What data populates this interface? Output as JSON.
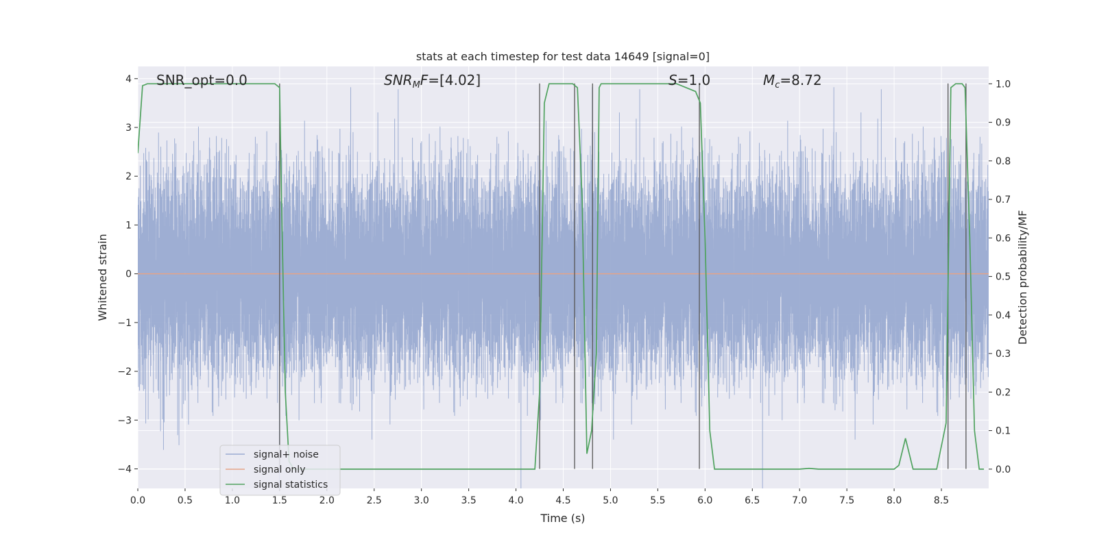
{
  "chart_data": {
    "type": "line",
    "title": "stats at each timestep for test data 14649 [signal=0]",
    "xlabel": "Time (s)",
    "ylabel": "Whitened strain",
    "y2label": "Detection probability/MF",
    "xlim": [
      0.0,
      9.0
    ],
    "ylim": [
      -4.4,
      4.25
    ],
    "y2lim": [
      -0.05,
      1.045
    ],
    "xticks": [
      0.0,
      0.5,
      1.0,
      1.5,
      2.0,
      2.5,
      3.0,
      3.5,
      4.0,
      4.5,
      5.0,
      5.5,
      6.0,
      6.5,
      7.0,
      7.5,
      8.0,
      8.5
    ],
    "xtick_labels": [
      "0.0",
      "0.5",
      "1.0",
      "1.5",
      "2.0",
      "2.5",
      "3.0",
      "3.5",
      "4.0",
      "4.5",
      "5.0",
      "5.5",
      "6.0",
      "6.5",
      "7.0",
      "7.5",
      "8.0",
      "8.5"
    ],
    "yticks": [
      -4,
      -3,
      -2,
      -1,
      0,
      1,
      2,
      3,
      4
    ],
    "ytick_labels": [
      "−4",
      "−3",
      "−2",
      "−1",
      "0",
      "1",
      "2",
      "3",
      "4"
    ],
    "y2ticks": [
      0.0,
      0.1,
      0.2,
      0.3,
      0.4,
      0.5,
      0.6,
      0.7,
      0.8,
      0.9,
      1.0
    ],
    "y2tick_labels": [
      "0.0",
      "0.1",
      "0.2",
      "0.3",
      "0.4",
      "0.5",
      "0.6",
      "0.7",
      "0.8",
      "0.9",
      "1.0"
    ],
    "grid": true,
    "legend_position": "lower-left",
    "colors": {
      "background": "#eaeaf2",
      "grid": "#ffffff",
      "noise": "#9aabd1",
      "signal": "#e5a488",
      "statistic": "#4fa25e",
      "marker": "#555555"
    },
    "annotations": {
      "snr_opt": "SNR_opt=0.0",
      "snr_mf_italic": "SNR",
      "snr_mf_sub": "M",
      "snr_mf_italic2": "F",
      "snr_mf_value": "=[4.02]",
      "s_symbol": "S",
      "s_value": "=1.0",
      "mc_symbol": "M",
      "mc_sub": "c",
      "mc_value": "=8.72"
    },
    "series": [
      {
        "name": "signal+ noise",
        "kind": "noise",
        "sample_rate": 2048,
        "duration": 9.0,
        "sigma": 1.0
      },
      {
        "name": "signal only",
        "kind": "constant",
        "x": [
          0.0,
          9.0
        ],
        "y": [
          0.0,
          0.0
        ]
      },
      {
        "name": "signal statistics",
        "kind": "axis2",
        "x": [
          0.0,
          0.05,
          0.1,
          0.15,
          1.45,
          1.5,
          1.52,
          1.56,
          1.6,
          1.65,
          1.7,
          2.0,
          4.0,
          4.2,
          4.25,
          4.3,
          4.35,
          4.5,
          4.6,
          4.65,
          4.7,
          4.75,
          4.8,
          4.85,
          4.88,
          4.9,
          5.6,
          5.7,
          5.8,
          5.9,
          5.95,
          6.0,
          6.05,
          6.1,
          7.0,
          7.1,
          7.2,
          7.9,
          8.0,
          8.05,
          8.12,
          8.2,
          8.3,
          8.45,
          8.55,
          8.6,
          8.65,
          8.72,
          8.75,
          8.8,
          8.85,
          8.9,
          8.95
        ],
        "y": [
          0.82,
          0.995,
          1.0,
          1.0,
          1.0,
          0.99,
          0.7,
          0.2,
          0.02,
          0.0,
          0.0,
          0.0,
          0.0,
          0.0,
          0.2,
          0.95,
          1.0,
          1.0,
          1.0,
          0.99,
          0.7,
          0.04,
          0.1,
          0.3,
          0.99,
          1.0,
          1.0,
          1.0,
          0.99,
          0.98,
          0.95,
          0.6,
          0.1,
          0.0,
          0.0,
          0.002,
          0.0,
          0.0,
          0.0,
          0.01,
          0.08,
          0.0,
          0.0,
          0.0,
          0.12,
          0.99,
          1.0,
          1.0,
          0.99,
          0.6,
          0.1,
          0.0,
          0.0
        ]
      }
    ],
    "vertical_lines": {
      "x": [
        1.5,
        4.25,
        4.62,
        4.81,
        5.94,
        8.57,
        8.76
      ],
      "y_range": [
        -4.0,
        3.9
      ]
    }
  }
}
